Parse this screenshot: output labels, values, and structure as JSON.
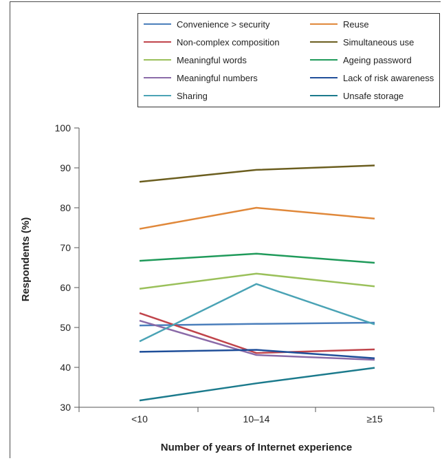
{
  "chart_data": {
    "type": "line",
    "categories": [
      "<10",
      "10–14",
      "≥15"
    ],
    "xlabel": "Number of years of Internet experience",
    "ylabel": "Respondents (%)",
    "ylim": [
      30,
      100
    ],
    "yticks": [
      30,
      40,
      50,
      60,
      70,
      80,
      90,
      100
    ],
    "grid": false,
    "legend_position": "top-right",
    "series": [
      {
        "name": "Convenience > security",
        "color": "#4a7ebb",
        "values": [
          50.5,
          50.9,
          51.2
        ]
      },
      {
        "name": "Reuse",
        "color": "#e0883a",
        "values": [
          74.7,
          80.0,
          77.3
        ]
      },
      {
        "name": "Non-complex composition",
        "color": "#c0444b",
        "values": [
          53.6,
          43.6,
          44.5
        ]
      },
      {
        "name": "Simultaneous use",
        "color": "#6b5e1f",
        "values": [
          86.5,
          89.5,
          90.6
        ]
      },
      {
        "name": "Meaningful words",
        "color": "#9ac05a",
        "values": [
          59.7,
          63.5,
          60.3
        ]
      },
      {
        "name": "Ageing password",
        "color": "#1f9a5a",
        "values": [
          66.7,
          68.5,
          66.2
        ]
      },
      {
        "name": "Meaningful numbers",
        "color": "#8a6aa8",
        "values": [
          51.7,
          43.1,
          41.9
        ]
      },
      {
        "name": "Lack of risk awareness",
        "color": "#1f4e99",
        "values": [
          43.9,
          44.4,
          42.3
        ]
      },
      {
        "name": "Sharing",
        "color": "#4aa3b5",
        "values": [
          46.5,
          60.9,
          50.8
        ]
      },
      {
        "name": "Unsafe storage",
        "color": "#1b7a8c",
        "values": [
          31.7,
          36.0,
          39.9
        ]
      }
    ]
  }
}
